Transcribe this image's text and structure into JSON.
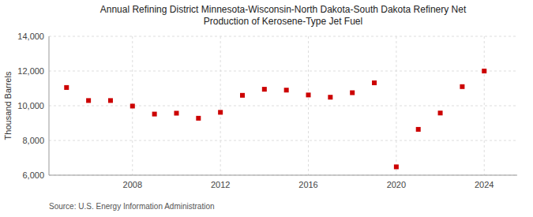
{
  "chart_data": {
    "type": "scatter",
    "title": "Annual Refining District Minnesota-Wisconsin-North Dakota-South Dakota Refinery Net\nProduction of Kerosene-Type Jet Fuel",
    "y_label": "Thousand Barrels",
    "annotations": [
      "Source: U.S. Energy Information Administration"
    ],
    "x": [
      2005,
      2006,
      2007,
      2008,
      2009,
      2010,
      2011,
      2012,
      2013,
      2014,
      2015,
      2016,
      2017,
      2018,
      2019,
      2020,
      2021,
      2022,
      2023,
      2024
    ],
    "values": [
      11050,
      10300,
      10300,
      9980,
      9520,
      9570,
      9280,
      9620,
      10600,
      10950,
      10900,
      10620,
      10490,
      10750,
      11320,
      6480,
      8640,
      9580,
      11100,
      12000
    ],
    "color": "#cc0000",
    "marker": "square",
    "xlim": [
      2004.2,
      2025.5
    ],
    "xticks": [
      2008,
      2012,
      2016,
      2020,
      2024
    ],
    "ylim": [
      6000,
      14000
    ],
    "yticks": [
      {
        "value": 6000,
        "label": "6,000"
      },
      {
        "value": 8000,
        "label": "8,000"
      },
      {
        "value": 10000,
        "label": "10,000"
      },
      {
        "value": 12000,
        "label": "12,000"
      },
      {
        "value": 14000,
        "label": "14,000"
      }
    ],
    "grid": true
  }
}
